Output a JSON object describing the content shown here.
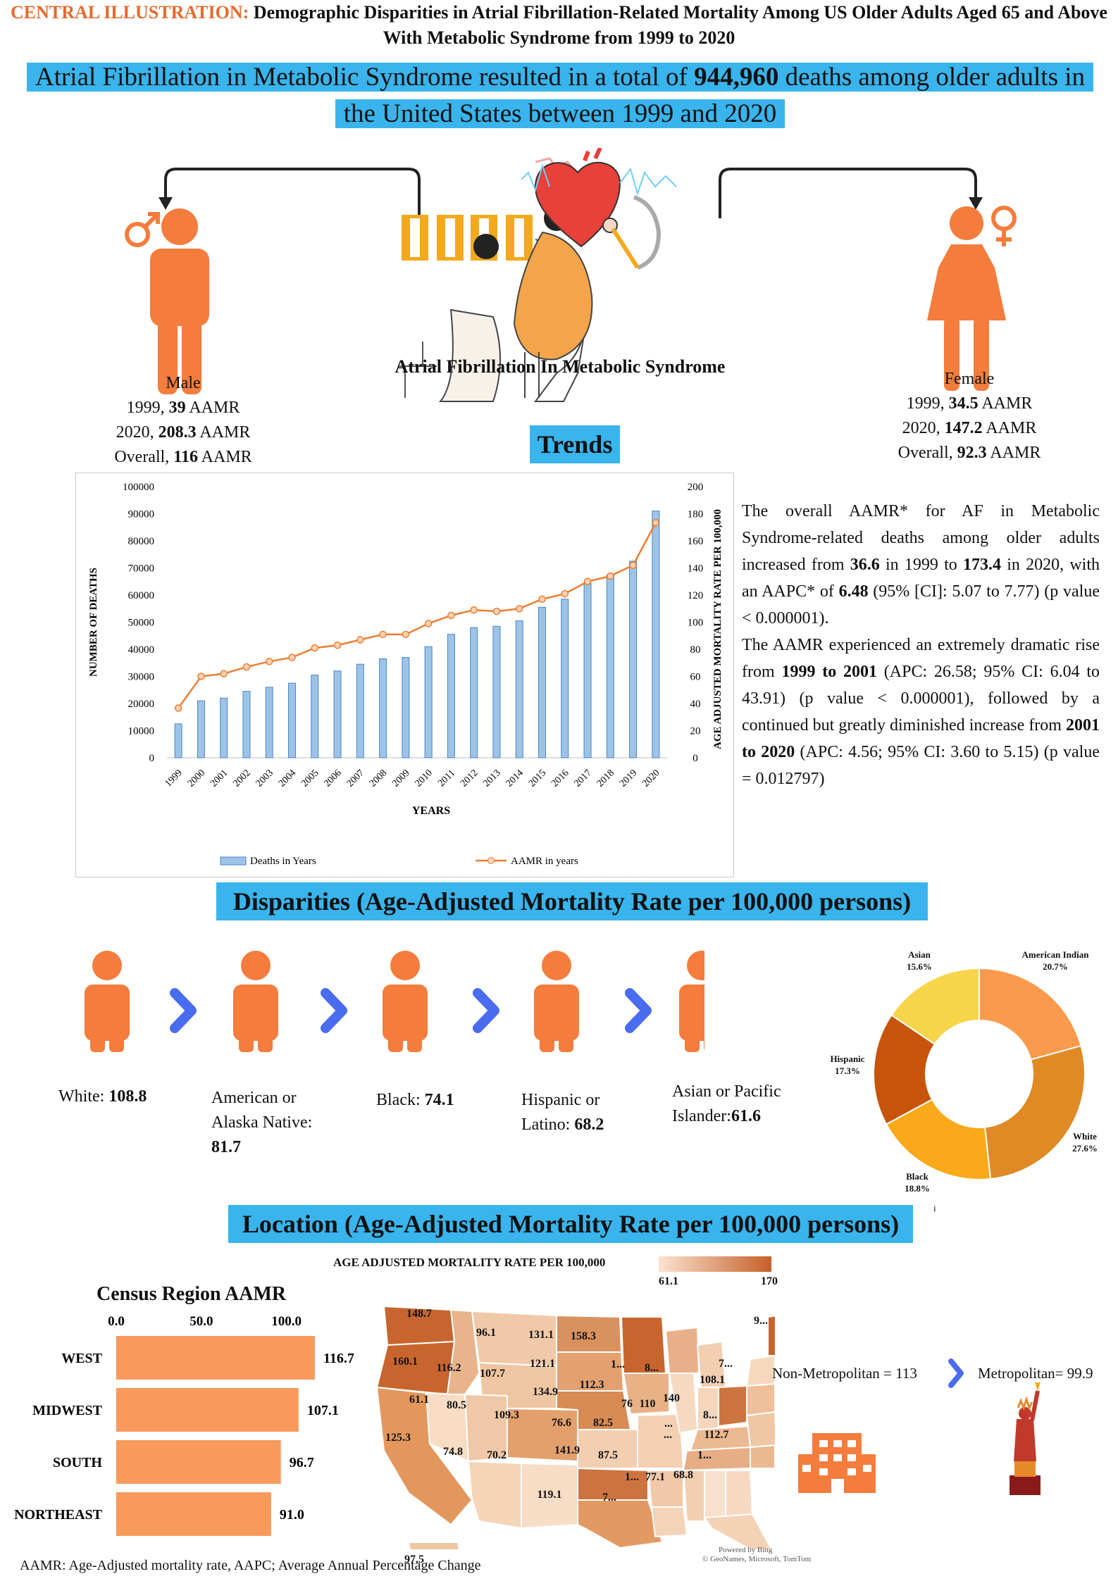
{
  "header": {
    "prefix": "CENTRAL ILLUSTRATION:",
    "title": "Demographic Disparities in Atrial Fibrillation-Related Mortality Among US Older Adults Aged 65 and Above With Metabolic Syndrome from 1999 to 2020"
  },
  "banner": {
    "text_1": "Atrial Fibrillation in Metabolic Syndrome resulted in a total of ",
    "deaths": "944,960",
    "text_2": " deaths among older adults in the United States between 1999 and 2020"
  },
  "center_caption": "Atrial Fibrillation In Metabolic Syndrome",
  "male": {
    "label": "Male",
    "line1_pre": "1999, ",
    "line1_val": "39",
    "line1_post": " AAMR",
    "line2_pre": "2020, ",
    "line2_val": "208.3",
    "line2_post": " AAMR",
    "line3_pre": "Overall, ",
    "line3_val": "116",
    "line3_post": " AAMR"
  },
  "female": {
    "label": "Female",
    "line1_pre": "1999, ",
    "line1_val": "34.5",
    "line1_post": " AAMR",
    "line2_pre": "2020, ",
    "line2_val": "147.2",
    "line2_post": " AAMR",
    "line3_pre": "Overall, ",
    "line3_val": "92.3",
    "line3_post": " AAMR"
  },
  "trends_title": "Trends",
  "chart_data": {
    "type": "bar",
    "categories": [
      "1999",
      "2000",
      "2001",
      "2002",
      "2003",
      "2004",
      "2005",
      "2006",
      "2007",
      "2008",
      "2009",
      "2010",
      "2011",
      "2012",
      "2013",
      "2014",
      "2015",
      "2016",
      "2017",
      "2018",
      "2019",
      "2020"
    ],
    "series": [
      {
        "name": "Deaths in Years",
        "type": "bar",
        "axis": "left",
        "values": [
          12500,
          21000,
          22000,
          24500,
          26000,
          27500,
          30500,
          32000,
          34500,
          36500,
          37000,
          41000,
          45500,
          48000,
          48500,
          50500,
          55500,
          58500,
          64500,
          67500,
          72500,
          91000
        ]
      },
      {
        "name": "AAMR in years",
        "type": "line",
        "axis": "right",
        "values": [
          36.6,
          60,
          62,
          67,
          71,
          74,
          81,
          83,
          87,
          91,
          91,
          99,
          105,
          109,
          108,
          110,
          117,
          121,
          130,
          134,
          142,
          173.4
        ]
      }
    ],
    "xlabel": "YEARS",
    "ylabel_left": "NUMBER OF DEATHS",
    "ylabel_right": "AGE ADJUSTED MORTALITY RATE PER 100,000",
    "ylim_left": [
      0,
      100000
    ],
    "ylim_right": [
      0,
      200
    ],
    "yticks_left": [
      "100000",
      "90000",
      "80000",
      "70000",
      "60000",
      "50000",
      "40000",
      "30000",
      "20000",
      "10000",
      "0"
    ],
    "yticks_right": [
      "200",
      "180",
      "160",
      "140",
      "120",
      "100",
      "80",
      "60",
      "40",
      "20",
      "0"
    ],
    "legend": [
      "Deaths in Years",
      "AAMR in years"
    ],
    "colors": {
      "bar": "#9dc3e6",
      "bar_edge": "#4a86c8",
      "line": "#ed7d31"
    }
  },
  "trends_text": {
    "p1_a": "The overall AAMR* for AF in Metabolic Syndrome-related deaths among older adults increased from ",
    "p1_v1": "36.6",
    "p1_b": " in 1999 to ",
    "p1_v2": "173.4",
    "p1_c": " in 2020, with an AAPC* of ",
    "p1_v3": "6.48",
    "p1_d": " (95% [CI]: 5.07 to 7.77) (p value < 0.000001).",
    "p2_a": "The AAMR experienced an extremely dramatic rise from ",
    "p2_v1": "1999 to 2001",
    "p2_b": " (APC: 26.58; 95% CI: 6.04 to 43.91) (p value < 0.000001), followed by a continued but greatly diminished increase from ",
    "p2_v2": "2001 to 2020",
    "p2_c": " (APC: 4.56; 95% CI: 3.60 to 5.15) (p value = 0.012797)"
  },
  "disparities": {
    "title": "Disparities (Age-Adjusted Mortality Rate per 100,000 persons)",
    "races": [
      {
        "label": "White: ",
        "value": "108.8"
      },
      {
        "label": "American or Alaska Native: ",
        "value": "81.7"
      },
      {
        "label": "Black: ",
        "value": "74.1"
      },
      {
        "label": "Hispanic or Latino: ",
        "value": "68.2"
      },
      {
        "label": "Asian or Pacific Islander:",
        "value": "61.6"
      }
    ],
    "donut": [
      {
        "name": "American Indian",
        "pct": "20.7%",
        "value": 20.7,
        "color": "#fb9a4c"
      },
      {
        "name": "White",
        "pct": "27.6%",
        "value": 27.6,
        "color": "#e08a25"
      },
      {
        "name": "Black",
        "pct": "18.8%",
        "value": 18.8,
        "color": "#f9a919"
      },
      {
        "name": "Hispanic",
        "pct": "17.3%",
        "value": 17.3,
        "color": "#c8540c"
      },
      {
        "name": "Asian",
        "pct": "15.6%",
        "value": 15.6,
        "color": "#f7d54a"
      }
    ],
    "donut_footnote": "i"
  },
  "location": {
    "title": "Location (Age-Adjusted Mortality Rate per 100,000 persons)",
    "census_title": "Census Region AAMR",
    "axis_ticks": [
      "0.0",
      "50.0",
      "100.0"
    ],
    "axis_max": 120,
    "regions": [
      {
        "name": "WEST",
        "value": 116.7,
        "label": "116.7"
      },
      {
        "name": "MIDWEST",
        "value": 107.1,
        "label": "107.1"
      },
      {
        "name": "SOUTH",
        "value": 96.7,
        "label": "96.7"
      },
      {
        "name": "NORTHEAST",
        "value": 91.0,
        "label": "91.0"
      }
    ],
    "map_legend_title": "AGE ADJUSTED MORTALITY RATE PER 100,000",
    "map_legend_min": "61.1",
    "map_legend_max": "170",
    "map_values": [
      "148.7",
      "96.1",
      "131.1",
      "158.3",
      "9...",
      "160.1",
      "116.2",
      "107.7",
      "121.1",
      "1...",
      "8...",
      "7...",
      "61.1",
      "80.5",
      "134.9",
      "112.3",
      "76",
      "110",
      "140",
      "108.1",
      "125.3",
      "109.3",
      "76.6",
      "82.5",
      "...",
      "8...",
      "74.8",
      "70.2",
      "141.9",
      "87.5",
      "...",
      "112.7",
      "1...",
      "1...",
      "77.1",
      "68.8",
      "119.1",
      "7...",
      "97.5"
    ],
    "map_credit_1": "Powered by Bing",
    "map_credit_2": "© GeoNames, Microsoft, TomTom",
    "non_metro": "Non-Metropolitan = 113",
    "metro": "Metropolitan= 99.9"
  },
  "footer": "AAMR: Age-Adjusted mortality rate, AAPC; Average Annual Percentage Change"
}
